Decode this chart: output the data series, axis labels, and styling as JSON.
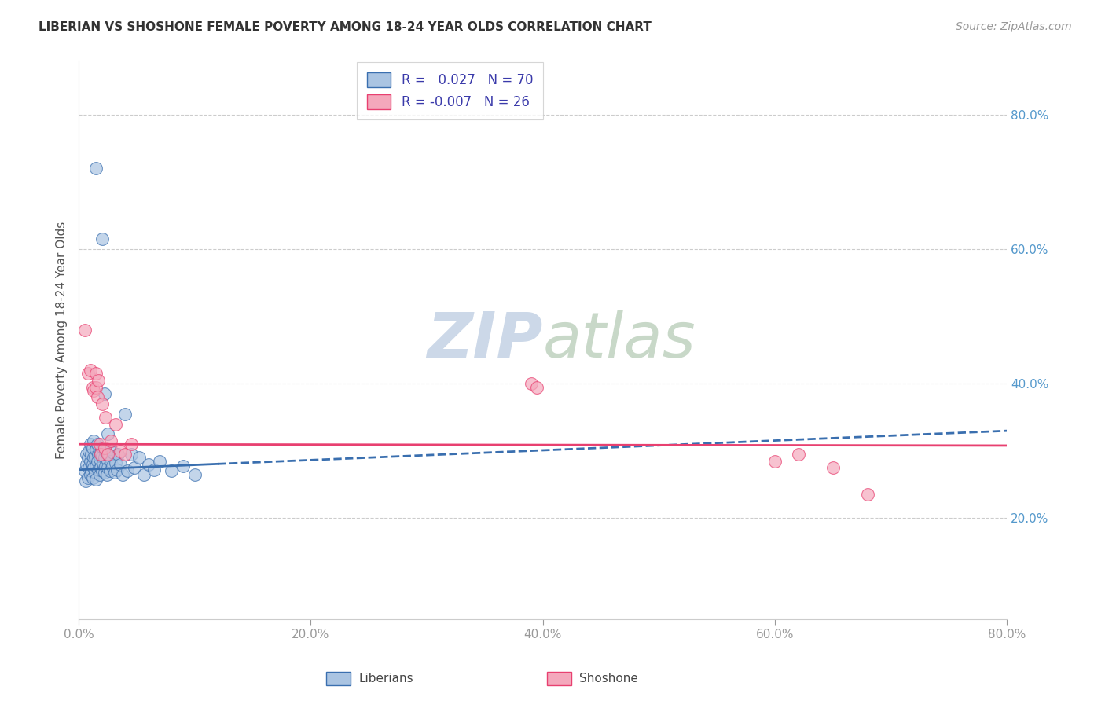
{
  "title": "LIBERIAN VS SHOSHONE FEMALE POVERTY AMONG 18-24 YEAR OLDS CORRELATION CHART",
  "source": "Source: ZipAtlas.com",
  "ylabel": "Female Poverty Among 18-24 Year Olds",
  "xlim": [
    0.0,
    0.8
  ],
  "ylim": [
    0.05,
    0.88
  ],
  "xticks": [
    0.0,
    0.2,
    0.4,
    0.6,
    0.8
  ],
  "yticks_right": [
    0.2,
    0.4,
    0.6,
    0.8
  ],
  "liberian_R": 0.027,
  "liberian_N": 70,
  "shoshone_R": -0.007,
  "shoshone_N": 26,
  "liberian_color": "#aac4e2",
  "shoshone_color": "#f4a8bc",
  "liberian_line_color": "#3a6faf",
  "shoshone_line_color": "#e84070",
  "watermark_color": "#ccd8e8",
  "background_color": "#ffffff",
  "grid_color": "#cccccc",
  "liberian_x": [
    0.005,
    0.006,
    0.007,
    0.007,
    0.008,
    0.008,
    0.009,
    0.009,
    0.01,
    0.01,
    0.01,
    0.011,
    0.011,
    0.012,
    0.012,
    0.012,
    0.013,
    0.013,
    0.013,
    0.014,
    0.014,
    0.015,
    0.015,
    0.015,
    0.016,
    0.016,
    0.017,
    0.017,
    0.018,
    0.018,
    0.019,
    0.019,
    0.02,
    0.02,
    0.021,
    0.021,
    0.022,
    0.022,
    0.023,
    0.023,
    0.024,
    0.024,
    0.025,
    0.026,
    0.027,
    0.028,
    0.029,
    0.03,
    0.031,
    0.032,
    0.033,
    0.034,
    0.036,
    0.038,
    0.04,
    0.042,
    0.045,
    0.048,
    0.052,
    0.056,
    0.06,
    0.065,
    0.07,
    0.08,
    0.09,
    0.1,
    0.015,
    0.02,
    0.022,
    0.025
  ],
  "liberian_y": [
    0.27,
    0.255,
    0.28,
    0.295,
    0.26,
    0.29,
    0.275,
    0.3,
    0.265,
    0.285,
    0.31,
    0.27,
    0.295,
    0.26,
    0.28,
    0.305,
    0.275,
    0.29,
    0.315,
    0.268,
    0.292,
    0.278,
    0.302,
    0.258,
    0.285,
    0.31,
    0.272,
    0.295,
    0.265,
    0.288,
    0.275,
    0.298,
    0.27,
    0.292,
    0.282,
    0.305,
    0.268,
    0.29,
    0.278,
    0.3,
    0.265,
    0.288,
    0.275,
    0.292,
    0.27,
    0.285,
    0.278,
    0.298,
    0.268,
    0.282,
    0.272,
    0.295,
    0.28,
    0.265,
    0.355,
    0.27,
    0.295,
    0.275,
    0.29,
    0.265,
    0.28,
    0.272,
    0.285,
    0.27,
    0.278,
    0.265,
    0.72,
    0.615,
    0.385,
    0.325
  ],
  "shoshone_x": [
    0.005,
    0.008,
    0.01,
    0.012,
    0.013,
    0.015,
    0.015,
    0.016,
    0.017,
    0.018,
    0.019,
    0.02,
    0.022,
    0.023,
    0.025,
    0.028,
    0.032,
    0.036,
    0.04,
    0.045,
    0.39,
    0.395,
    0.6,
    0.62,
    0.65,
    0.68
  ],
  "shoshone_y": [
    0.48,
    0.415,
    0.42,
    0.395,
    0.39,
    0.415,
    0.395,
    0.38,
    0.405,
    0.31,
    0.295,
    0.37,
    0.305,
    0.35,
    0.295,
    0.315,
    0.34,
    0.3,
    0.295,
    0.31,
    0.4,
    0.395,
    0.285,
    0.295,
    0.275,
    0.235
  ],
  "lib_trend_x": [
    0.0,
    0.8
  ],
  "lib_trend_y": [
    0.272,
    0.33
  ],
  "sho_trend_y": [
    0.31,
    0.308
  ]
}
